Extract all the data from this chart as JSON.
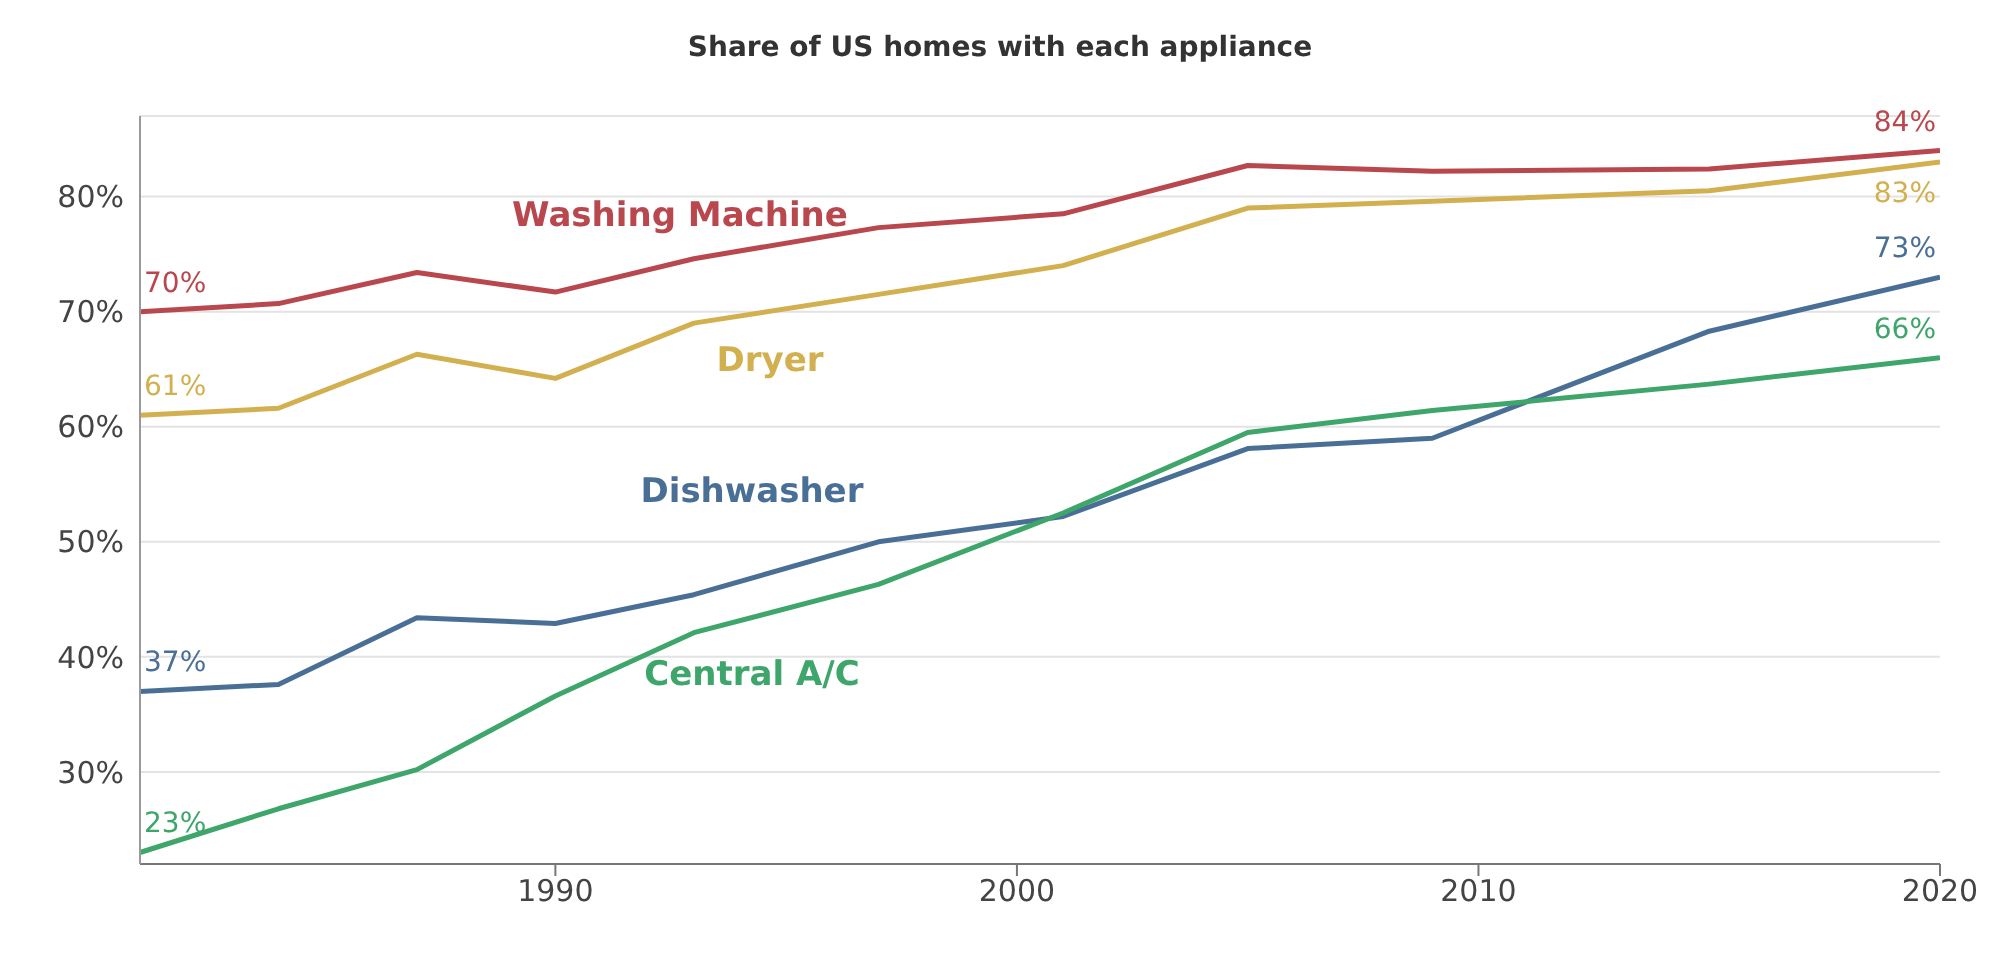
{
  "chart_data": {
    "type": "line",
    "title": "Share of US homes with each appliance",
    "x": [
      1981,
      1984,
      1987,
      1990,
      1993,
      1997,
      2001,
      2005,
      2009,
      2015,
      2020
    ],
    "series": [
      {
        "name": "Washing Machine",
        "color": "#b8474e",
        "values": [
          70,
          70.7,
          73.4,
          71.7,
          74.6,
          77.3,
          78.5,
          82.7,
          82.2,
          82.4,
          84
        ],
        "value_labels": [
          "70%",
          null,
          null,
          null,
          null,
          null,
          null,
          null,
          null,
          null,
          "84%"
        ]
      },
      {
        "name": "Dryer",
        "color": "#d2b050",
        "values": [
          61,
          61.6,
          66.3,
          64.2,
          69,
          71.5,
          74,
          79,
          79.6,
          80.5,
          83
        ],
        "value_labels": [
          "61%",
          null,
          null,
          null,
          null,
          null,
          null,
          null,
          null,
          null,
          "83%"
        ]
      },
      {
        "name": "Dishwasher",
        "color": "#4a6f96",
        "values": [
          37,
          37.6,
          43.4,
          42.9,
          45.4,
          50,
          52.2,
          58.1,
          59,
          68.3,
          73
        ],
        "value_labels": [
          "37%",
          null,
          null,
          null,
          null,
          null,
          null,
          null,
          null,
          null,
          "73%"
        ]
      },
      {
        "name": "Central A/C",
        "color": "#3ea56b",
        "values": [
          23,
          26.8,
          30.2,
          36.6,
          42.1,
          46.3,
          52.5,
          59.5,
          61.4,
          63.7,
          66
        ],
        "value_labels": [
          "23%",
          null,
          null,
          null,
          null,
          null,
          null,
          null,
          null,
          null,
          "66%"
        ]
      }
    ],
    "xlim": [
      1981,
      2020
    ],
    "xticks": [
      1990,
      2000,
      2010,
      2020
    ],
    "ylim": [
      22,
      87
    ],
    "yticks": [
      {
        "value": 30,
        "label": "30%"
      },
      {
        "value": 40,
        "label": "40%"
      },
      {
        "value": 50,
        "label": "50%"
      },
      {
        "value": 60,
        "label": "60%"
      },
      {
        "value": 70,
        "label": "70%"
      },
      {
        "value": 80,
        "label": "80%"
      }
    ],
    "grid": "y",
    "legend": false,
    "marker": "none",
    "line_style": "solid"
  }
}
